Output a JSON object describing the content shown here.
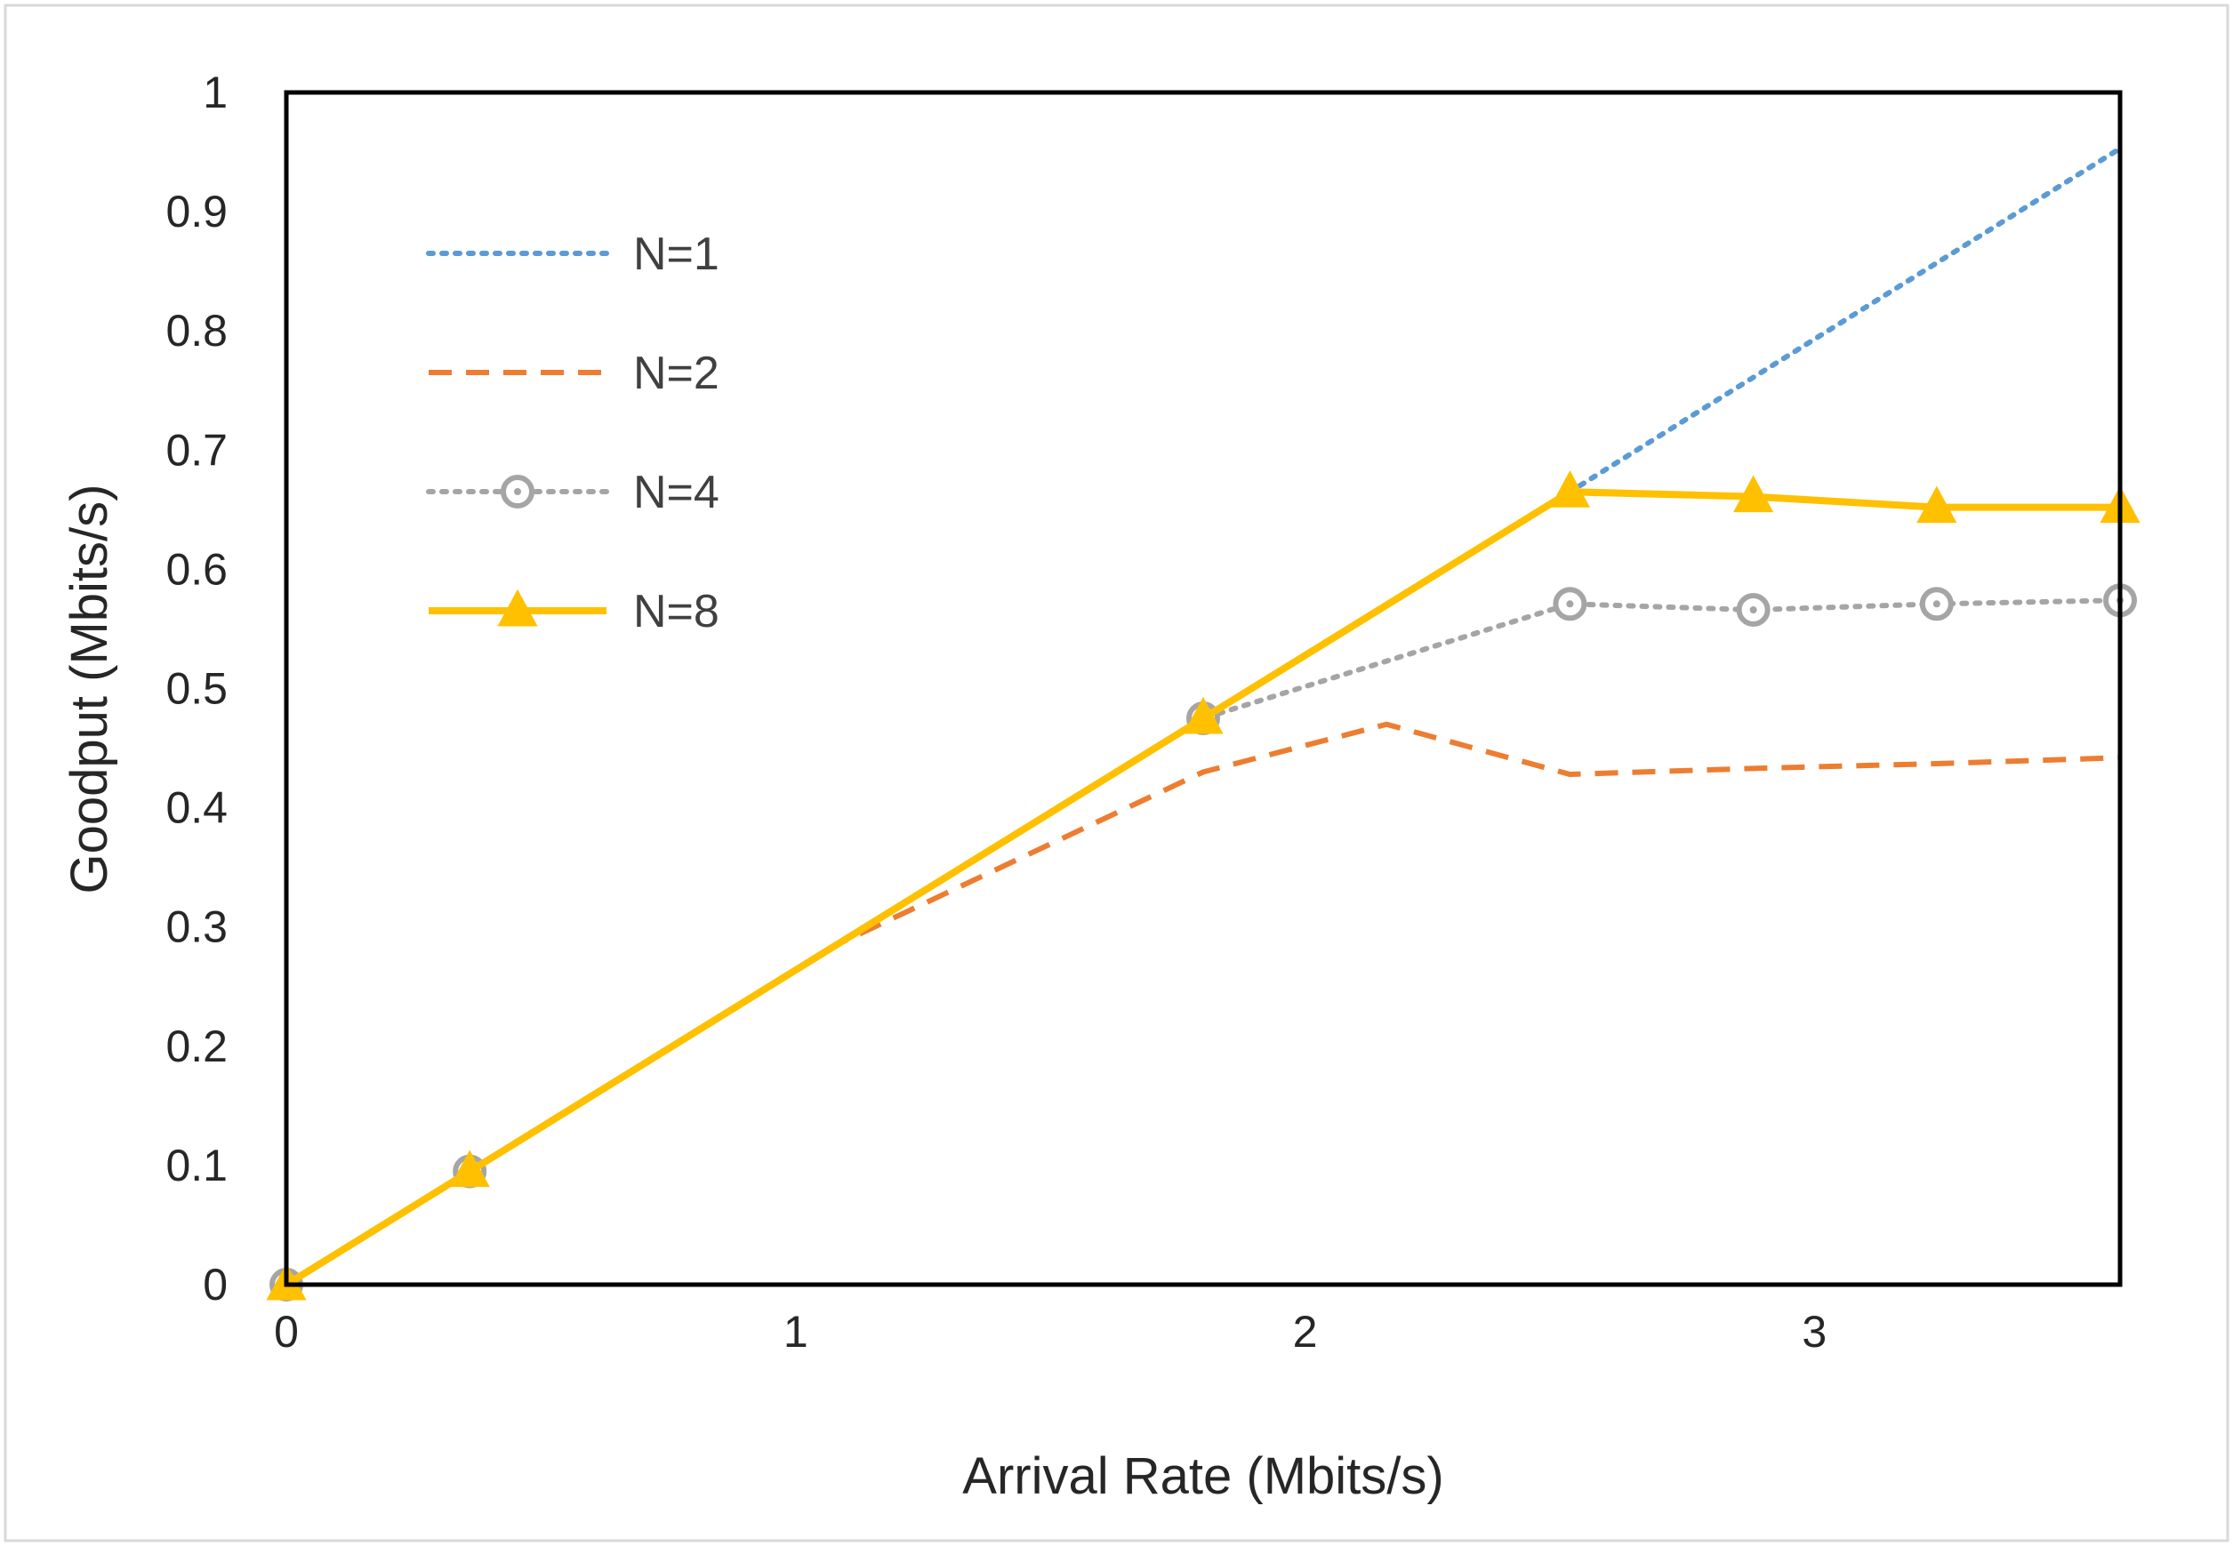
{
  "chart_data": {
    "type": "line",
    "title": "",
    "xlabel": "Arrival Rate (Mbits/s)",
    "ylabel": "Goodput (Mbits/s)",
    "xlim": [
      0,
      3.6
    ],
    "ylim": [
      0,
      1
    ],
    "xticks": [
      0,
      1,
      2,
      3
    ],
    "yticks": [
      0,
      0.1,
      0.2,
      0.3,
      0.4,
      0.5,
      0.6,
      0.7,
      0.8,
      0.9,
      1
    ],
    "grid": false,
    "legend_position": "top-left",
    "series": [
      {
        "name": "N=1",
        "color": "#5B9BD5",
        "style": "dotted",
        "marker": "none",
        "x": [
          0,
          0.36,
          1.08,
          1.8,
          2.52,
          3.6
        ],
        "y": [
          0,
          0.095,
          0.285,
          0.475,
          0.665,
          0.953
        ]
      },
      {
        "name": "N=2",
        "color": "#ED7D31",
        "style": "dashed",
        "marker": "none",
        "x": [
          0,
          0.36,
          1.08,
          1.8,
          2.16,
          2.52,
          2.88,
          3.24,
          3.6
        ],
        "y": [
          0,
          0.095,
          0.285,
          0.43,
          0.47,
          0.428,
          0.433,
          0.437,
          0.442
        ]
      },
      {
        "name": "N=4",
        "color": "#A5A5A5",
        "style": "dotted",
        "marker": "circle",
        "x": [
          0,
          0.36,
          1.8,
          2.52,
          2.88,
          3.24,
          3.6
        ],
        "y": [
          0,
          0.095,
          0.475,
          0.571,
          0.566,
          0.571,
          0.574
        ]
      },
      {
        "name": "N=8",
        "color": "#FFC000",
        "style": "solid",
        "marker": "triangle",
        "x": [
          0,
          0.36,
          1.8,
          2.52,
          2.88,
          3.24,
          3.6
        ],
        "y": [
          0,
          0.095,
          0.475,
          0.665,
          0.661,
          0.652,
          0.652
        ]
      }
    ]
  }
}
